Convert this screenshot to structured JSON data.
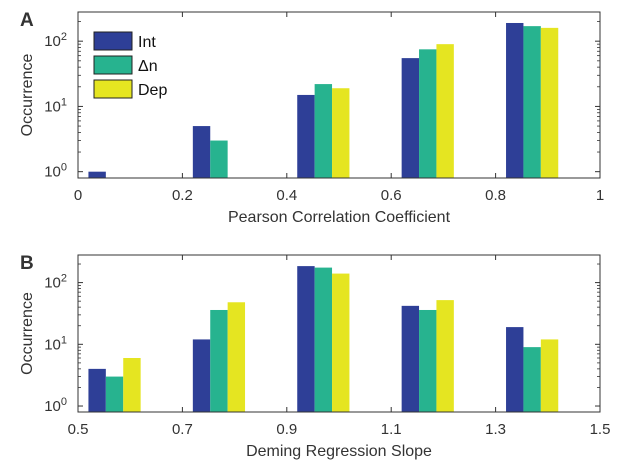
{
  "chart_data": [
    {
      "type": "bar",
      "panel_label": "A",
      "xlabel": "Pearson Correlation Coefficient",
      "ylabel": "Occurrence",
      "xlim": [
        0,
        1
      ],
      "ylim": [
        0.8,
        280
      ],
      "yscale": "log",
      "x_ticks": [
        "0",
        "0.2",
        "0.4",
        "0.6",
        "0.8",
        "1"
      ],
      "y_ticks": [
        {
          "base": "10",
          "exp": "0",
          "value": 1
        },
        {
          "base": "10",
          "exp": "1",
          "value": 10
        },
        {
          "base": "10",
          "exp": "2",
          "value": 100
        }
      ],
      "bin_width": 0.2,
      "bin_starts": [
        0,
        0.2,
        0.4,
        0.6,
        0.8
      ],
      "series": [
        {
          "name": "Int",
          "values": [
            1,
            5,
            15,
            55,
            190
          ]
        },
        {
          "name": "Δn",
          "values": [
            0,
            3,
            22,
            75,
            170
          ]
        },
        {
          "name": "Dep",
          "values": [
            0,
            0,
            19,
            90,
            160
          ]
        }
      ],
      "legend": {
        "position": "top-left"
      },
      "grid": false
    },
    {
      "type": "bar",
      "panel_label": "B",
      "xlabel": "Deming Regression Slope",
      "ylabel": "Occurrence",
      "xlim": [
        0.5,
        1.5
      ],
      "ylim": [
        0.8,
        280
      ],
      "yscale": "log",
      "x_ticks": [
        "0.5",
        "0.7",
        "0.9",
        "1.1",
        "1.3",
        "1.5"
      ],
      "y_ticks": [
        {
          "base": "10",
          "exp": "0",
          "value": 1
        },
        {
          "base": "10",
          "exp": "1",
          "value": 10
        },
        {
          "base": "10",
          "exp": "2",
          "value": 100
        }
      ],
      "bin_width": 0.2,
      "bin_starts": [
        0.5,
        0.7,
        0.9,
        1.1,
        1.3
      ],
      "series": [
        {
          "name": "Int",
          "values": [
            4,
            12,
            185,
            42,
            19
          ]
        },
        {
          "name": "Δn",
          "values": [
            3,
            36,
            175,
            36,
            9
          ]
        },
        {
          "name": "Dep",
          "values": [
            6,
            48,
            140,
            52,
            12
          ]
        }
      ],
      "grid": false
    }
  ],
  "colors": {
    "Int": "#2e3f97",
    "Δn": "#27b38f",
    "Dep": "#e5e521",
    "axis": "#333333"
  }
}
